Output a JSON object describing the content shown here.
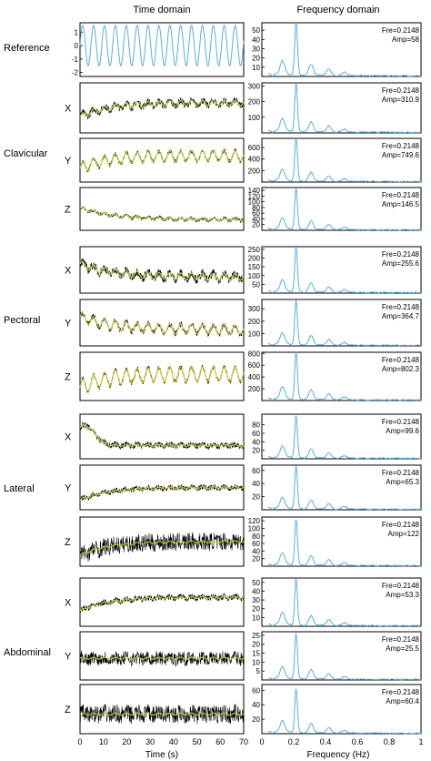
{
  "headers": {
    "time": "Time domain",
    "freq": "Frequency domain"
  },
  "x_axes": {
    "time": {
      "label": "Time (s)",
      "ticks": [
        0,
        10,
        20,
        30,
        40,
        50,
        60,
        70
      ],
      "range": [
        0,
        70
      ]
    },
    "freq": {
      "label": "Frequency (Hz)",
      "ticks": [
        "0",
        "0.2",
        "0.4",
        "0.6",
        "0.8",
        "1"
      ],
      "range": [
        0,
        1
      ]
    }
  },
  "groups": [
    {
      "label": "Reference",
      "rows": [
        0
      ]
    },
    {
      "label": "Clavicular",
      "rows": [
        1,
        2,
        3
      ]
    },
    {
      "label": "Pectoral",
      "rows": [
        4,
        5,
        6
      ]
    },
    {
      "label": "Lateral",
      "rows": [
        7,
        8,
        9
      ]
    },
    {
      "label": "Abdominal",
      "rows": [
        10,
        11,
        12
      ]
    }
  ],
  "colors": {
    "signal_line": "#5aaedc",
    "raw_signal": "#000000",
    "filtered_signal": "#c8cc33",
    "axes": "#000000"
  },
  "chart_data": [
    {
      "type": "line",
      "panel": "time",
      "row": 0,
      "axis_label": "",
      "yticks": [
        "1",
        "0",
        "-1",
        "-2"
      ],
      "ylim": [
        -2.3,
        1.7
      ],
      "series": {
        "trend": "flat",
        "base": 0,
        "amp": 1.5,
        "period_s": 4.655,
        "noise": 0,
        "filtered": false
      }
    },
    {
      "type": "line",
      "panel": "freq",
      "row": 0,
      "yticks": [
        "50",
        "40",
        "30",
        "20",
        "10"
      ],
      "ylim": [
        0,
        58
      ],
      "annotation": {
        "fre": "Fre=0.2148",
        "amp": "Amp=58"
      },
      "peak": {
        "x": 0.2148,
        "y": 58
      }
    },
    {
      "type": "line",
      "panel": "time",
      "row": 1,
      "axis_label": "X",
      "yticks": [],
      "ylim": [
        0,
        1
      ],
      "series": {
        "trend": "rise",
        "base": 0.6,
        "amp": 0.05,
        "period_s": 4.655,
        "noise": 0.07,
        "filtered": true
      }
    },
    {
      "type": "line",
      "panel": "freq",
      "row": 1,
      "yticks": [
        "300",
        "200",
        "100"
      ],
      "ylim": [
        0,
        320
      ],
      "annotation": {
        "fre": "Fre=0.2148",
        "amp": "Amp=310.9"
      },
      "peak": {
        "x": 0.2148,
        "y": 310.9
      }
    },
    {
      "type": "line",
      "panel": "time",
      "row": 2,
      "axis_label": "Y",
      "yticks": [],
      "ylim": [
        0,
        1
      ],
      "series": {
        "trend": "rise",
        "base": 0.6,
        "amp": 0.12,
        "period_s": 4.655,
        "noise": 0.05,
        "filtered": true
      }
    },
    {
      "type": "line",
      "panel": "freq",
      "row": 2,
      "yticks": [
        "600",
        "400",
        "200"
      ],
      "ylim": [
        0,
        760
      ],
      "annotation": {
        "fre": "Fre=0.2148",
        "amp": "Amp=749.6"
      },
      "peak": {
        "x": 0.2148,
        "y": 749.6
      }
    },
    {
      "type": "line",
      "panel": "time",
      "row": 3,
      "axis_label": "Z",
      "yticks": [],
      "ylim": [
        0,
        1
      ],
      "series": {
        "trend": "decay",
        "base": 0.25,
        "amp": 0.03,
        "period_s": 4.655,
        "noise": 0.04,
        "filtered": true
      }
    },
    {
      "type": "line",
      "panel": "freq",
      "row": 3,
      "yticks": [
        "140",
        "120",
        "100",
        "80",
        "60",
        "40",
        "20"
      ],
      "ylim": [
        0,
        150
      ],
      "annotation": {
        "fre": "Fre=0.2148",
        "amp": "Amp=146.5"
      },
      "peak": {
        "x": 0.2148,
        "y": 146.5
      }
    },
    {
      "type": "line",
      "panel": "time",
      "row": 4,
      "axis_label": "X",
      "yticks": [],
      "ylim": [
        0,
        1
      ],
      "series": {
        "trend": "decay",
        "base": 0.35,
        "amp": 0.07,
        "period_s": 4.655,
        "noise": 0.09,
        "filtered": true
      }
    },
    {
      "type": "line",
      "panel": "freq",
      "row": 4,
      "yticks": [
        "250",
        "200",
        "150",
        "100",
        "50"
      ],
      "ylim": [
        0,
        265
      ],
      "annotation": {
        "fre": "Fre=0.2148",
        "amp": "Amp=255.6"
      },
      "peak": {
        "x": 0.2148,
        "y": 255.6
      }
    },
    {
      "type": "line",
      "panel": "time",
      "row": 5,
      "axis_label": "Y",
      "yticks": [],
      "ylim": [
        0,
        1
      ],
      "series": {
        "trend": "decay",
        "base": 0.35,
        "amp": 0.1,
        "period_s": 4.655,
        "noise": 0.06,
        "filtered": true
      }
    },
    {
      "type": "line",
      "panel": "freq",
      "row": 5,
      "yticks": [
        "300",
        "200",
        "100"
      ],
      "ylim": [
        0,
        375
      ],
      "annotation": {
        "fre": "Fre=0.2148",
        "amp": "Amp=364.7"
      },
      "peak": {
        "x": 0.2148,
        "y": 364.7
      }
    },
    {
      "type": "line",
      "panel": "time",
      "row": 6,
      "axis_label": "Z",
      "yticks": [],
      "ylim": [
        0,
        1
      ],
      "series": {
        "trend": "rise",
        "base": 0.55,
        "amp": 0.15,
        "period_s": 4.655,
        "noise": 0.05,
        "filtered": true
      }
    },
    {
      "type": "line",
      "panel": "freq",
      "row": 6,
      "yticks": [
        "800",
        "600",
        "400",
        "200"
      ],
      "ylim": [
        0,
        820
      ],
      "annotation": {
        "fre": "Fre=0.2148",
        "amp": "Amp=802.3"
      },
      "peak": {
        "x": 0.2148,
        "y": 802.3
      }
    },
    {
      "type": "line",
      "panel": "time",
      "row": 7,
      "axis_label": "X",
      "yticks": [],
      "ylim": [
        0,
        1
      ],
      "series": {
        "trend": "spike",
        "base": 0.3,
        "amp": 0.02,
        "period_s": 4.655,
        "noise": 0.07,
        "filtered": true
      }
    },
    {
      "type": "line",
      "panel": "freq",
      "row": 7,
      "yticks": [
        "80",
        "60",
        "40",
        "20"
      ],
      "ylim": [
        0,
        105
      ],
      "annotation": {
        "fre": "Fre=0.2148",
        "amp": "Amp=99.6"
      },
      "peak": {
        "x": 0.2148,
        "y": 99.6
      }
    },
    {
      "type": "line",
      "panel": "time",
      "row": 8,
      "axis_label": "Y",
      "yticks": [],
      "ylim": [
        0,
        1
      ],
      "series": {
        "trend": "rise",
        "base": 0.5,
        "amp": 0.02,
        "period_s": 4.655,
        "noise": 0.06,
        "filtered": true
      }
    },
    {
      "type": "line",
      "panel": "freq",
      "row": 8,
      "yticks": [
        "60",
        "40",
        "20"
      ],
      "ylim": [
        0,
        68
      ],
      "annotation": {
        "fre": "Fre=0.2148",
        "amp": "Amp=65.3"
      },
      "peak": {
        "x": 0.2148,
        "y": 65.3
      }
    },
    {
      "type": "line",
      "panel": "time",
      "row": 9,
      "axis_label": "Z",
      "yticks": [],
      "ylim": [
        0,
        1
      ],
      "series": {
        "trend": "rise",
        "base": 0.5,
        "amp": 0.02,
        "period_s": 4.655,
        "noise": 0.18,
        "filtered": true
      }
    },
    {
      "type": "line",
      "panel": "freq",
      "row": 9,
      "yticks": [
        "120",
        "100",
        "80",
        "60",
        "40",
        "20"
      ],
      "ylim": [
        0,
        130
      ],
      "annotation": {
        "fre": "Fre=0.2148",
        "amp": "Amp=122"
      },
      "peak": {
        "x": 0.2148,
        "y": 122
      }
    },
    {
      "type": "line",
      "panel": "time",
      "row": 10,
      "axis_label": "X",
      "yticks": [],
      "ylim": [
        0,
        1
      ],
      "series": {
        "trend": "rise",
        "base": 0.6,
        "amp": 0.02,
        "period_s": 4.655,
        "noise": 0.06,
        "filtered": true
      }
    },
    {
      "type": "line",
      "panel": "freq",
      "row": 10,
      "yticks": [
        "50",
        "40",
        "30",
        "20",
        "10"
      ],
      "ylim": [
        0,
        55
      ],
      "annotation": {
        "fre": "Fre=0.2148",
        "amp": "Amp=53.3"
      },
      "peak": {
        "x": 0.2148,
        "y": 53.3
      }
    },
    {
      "type": "line",
      "panel": "time",
      "row": 11,
      "axis_label": "Y",
      "yticks": [],
      "ylim": [
        0,
        1
      ],
      "series": {
        "trend": "flat",
        "base": 0.45,
        "amp": 0.02,
        "period_s": 4.655,
        "noise": 0.14,
        "filtered": true
      }
    },
    {
      "type": "line",
      "panel": "freq",
      "row": 11,
      "yticks": [
        "25",
        "20",
        "15",
        "10",
        "5"
      ],
      "ylim": [
        0,
        27
      ],
      "annotation": {
        "fre": "Fre=0.2148",
        "amp": "Amp=25.5"
      },
      "peak": {
        "x": 0.2148,
        "y": 25.5
      }
    },
    {
      "type": "line",
      "panel": "time",
      "row": 12,
      "axis_label": "Z",
      "yticks": [],
      "ylim": [
        0,
        1
      ],
      "series": {
        "trend": "flat",
        "base": 0.4,
        "amp": 0.02,
        "period_s": 4.655,
        "noise": 0.18,
        "filtered": true
      }
    },
    {
      "type": "line",
      "panel": "freq",
      "row": 12,
      "yticks": [
        "60",
        "40",
        "20"
      ],
      "ylim": [
        0,
        68
      ],
      "annotation": {
        "fre": "Fre=0.2148",
        "amp": "Amp=60.4"
      },
      "peak": {
        "x": 0.2148,
        "y": 60.4
      }
    }
  ]
}
